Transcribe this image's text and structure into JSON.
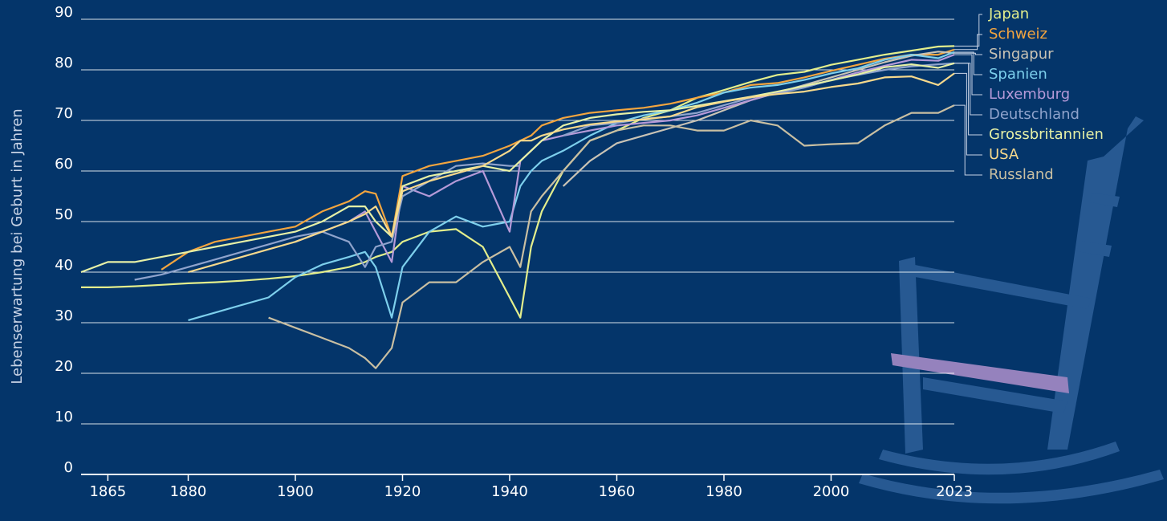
{
  "chart_data": {
    "type": "line",
    "y_label": "Lebenserwartung bei Geburt in Jahren",
    "x": [
      1860,
      1865,
      1870,
      1875,
      1880,
      1885,
      1890,
      1895,
      1900,
      1905,
      1910,
      1913,
      1915,
      1918,
      1920,
      1925,
      1930,
      1935,
      1940,
      1942,
      1944,
      1946,
      1950,
      1955,
      1960,
      1965,
      1970,
      1975,
      1980,
      1985,
      1990,
      1995,
      2000,
      2005,
      2010,
      2015,
      2020,
      2023
    ],
    "xlim": [
      1860,
      2023
    ],
    "xticks": [
      1865,
      1880,
      1900,
      1920,
      1940,
      1960,
      1980,
      2000,
      2023
    ],
    "ylim": [
      0,
      90
    ],
    "yticks": [
      0,
      10,
      20,
      30,
      40,
      50,
      60,
      70,
      80,
      90
    ],
    "grid": true,
    "series": [
      {
        "name": "Japan",
        "color": "#e3ee8c",
        "values": [
          37,
          37,
          37.2,
          37.5,
          37.8,
          38,
          38.3,
          38.7,
          39.2,
          40,
          41,
          42,
          43,
          44,
          46,
          48,
          48.5,
          45,
          35,
          31,
          45,
          52,
          60,
          66,
          68,
          70.5,
          72,
          74.5,
          76,
          77.6,
          79,
          79.6,
          81,
          82,
          83,
          83.8,
          84.6,
          84.7
        ]
      },
      {
        "name": "Schweiz",
        "color": "#f3a53f",
        "values": [
          null,
          null,
          null,
          40.5,
          44,
          46,
          47,
          48,
          49,
          52,
          54,
          56,
          55.5,
          47,
          59,
          61,
          62,
          63,
          65,
          66,
          67,
          69,
          70.5,
          71.5,
          72,
          72.5,
          73.3,
          74.5,
          75.5,
          77,
          77.4,
          78.5,
          79.8,
          81,
          82.2,
          83,
          83,
          84
        ]
      },
      {
        "name": "Singapur",
        "color": "#c9c3b5",
        "values": [
          null,
          null,
          null,
          null,
          null,
          null,
          null,
          null,
          null,
          null,
          null,
          null,
          null,
          null,
          null,
          null,
          null,
          null,
          null,
          null,
          null,
          null,
          57,
          62,
          65.5,
          67,
          68.5,
          70,
          72,
          74,
          75.5,
          77,
          78.5,
          80,
          81.5,
          82.8,
          83.6,
          83.3
        ]
      },
      {
        "name": "Spanien",
        "color": "#7dcfec",
        "values": [
          null,
          null,
          null,
          null,
          30.5,
          32,
          33.5,
          35,
          39,
          41.5,
          43,
          44,
          41,
          31,
          41,
          48,
          51,
          49,
          50,
          57,
          60,
          62,
          64,
          67,
          69.5,
          71,
          72,
          73.5,
          75.5,
          76.5,
          77,
          78,
          79.3,
          80.3,
          82,
          83,
          82.3,
          83.5
        ]
      },
      {
        "name": "Luxemburg",
        "color": "#b59ad8",
        "values": [
          null,
          null,
          null,
          null,
          null,
          null,
          null,
          null,
          46,
          48,
          50,
          52,
          48,
          42,
          57,
          55,
          58,
          60,
          48,
          62,
          64,
          66,
          67,
          68,
          69,
          69.5,
          70,
          71,
          72.5,
          74,
          75.5,
          76.5,
          78,
          79.5,
          80.8,
          82,
          81.8,
          83
        ]
      },
      {
        "name": "Deutschland",
        "color": "#8fa3cc",
        "values": [
          null,
          null,
          38.5,
          39.5,
          41,
          42.5,
          44,
          45.5,
          47,
          48,
          46,
          41,
          45,
          46,
          55,
          58,
          61,
          61.5,
          61,
          61,
          null,
          null,
          67,
          69,
          69.5,
          70.3,
          70.8,
          71.5,
          73,
          74.5,
          75.3,
          76.5,
          78,
          79,
          80,
          80.7,
          81.1,
          81.3
        ]
      },
      {
        "name": "Grossbritannien",
        "color": "#e6f0a6",
        "values": [
          40,
          42,
          42,
          43,
          44,
          45,
          46,
          47,
          48,
          50,
          53,
          53,
          50,
          47,
          57,
          59,
          60,
          61,
          60,
          62,
          64,
          66,
          69,
          70.5,
          71.2,
          71.7,
          72,
          72.9,
          73.8,
          74.7,
          75.7,
          76.8,
          77.9,
          79.1,
          80.5,
          81.1,
          80.4,
          81.3
        ]
      },
      {
        "name": "USA",
        "color": "#f7d98c",
        "values": [
          null,
          null,
          null,
          null,
          40,
          41.5,
          43,
          44.5,
          46,
          48,
          50,
          51.5,
          53,
          47,
          56,
          58,
          59.5,
          61,
          64,
          66,
          66,
          67,
          68.2,
          69.2,
          69.8,
          70.2,
          70.8,
          72.6,
          73.7,
          74.6,
          75.2,
          75.7,
          76.6,
          77.3,
          78.5,
          78.7,
          77,
          79.3
        ]
      },
      {
        "name": "Russland",
        "color": "#c9bfa2",
        "values": [
          null,
          null,
          null,
          null,
          null,
          null,
          null,
          31,
          29,
          27,
          25,
          23,
          21,
          25,
          34,
          38,
          38,
          42,
          45,
          41,
          52,
          55,
          60,
          66,
          68,
          69,
          69,
          68,
          68,
          70,
          69,
          65,
          65.3,
          65.5,
          69,
          71.5,
          71.5,
          73
        ]
      }
    ]
  }
}
